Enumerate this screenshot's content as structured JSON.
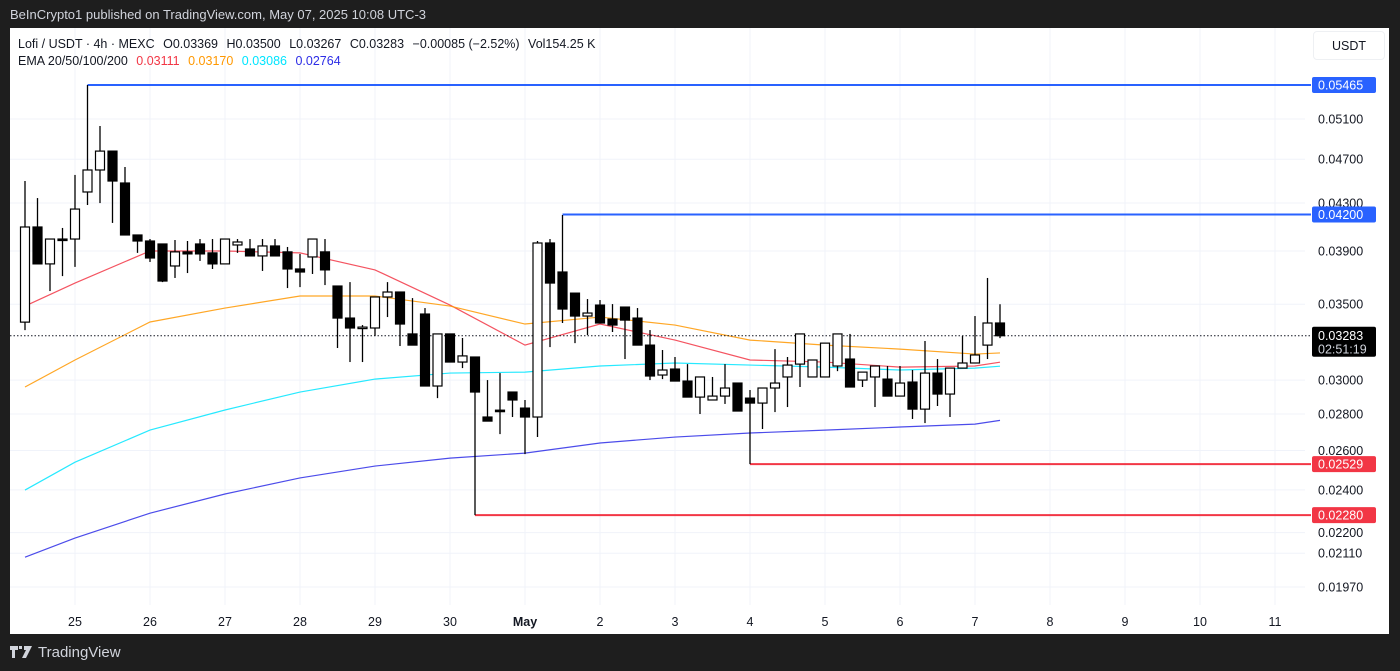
{
  "publish_line": "BeInCrypto1 published on TradingView.com, May 07, 2025 10:08 UTC-3",
  "legend": {
    "symbol": "Lofi / USDT · 4h · MEXC",
    "open": "O0.03369",
    "high": "H0.03500",
    "low": "L0.03267",
    "close": "C0.03283",
    "change": "−0.00085 (−2.52%)",
    "volume": "Vol154.25 K",
    "ema_label": "EMA 20/50/100/200",
    "ema_values": [
      "0.03111",
      "0.03170",
      "0.03086",
      "0.02764"
    ]
  },
  "currency_button": "USDT",
  "footer_brand": "TradingView",
  "colors": {
    "ema20": "#f23645",
    "ema50": "#ff9800",
    "ema100": "#00e5ff",
    "ema200": "#2d2de6",
    "resistance": "#2962ff",
    "support": "#f23645",
    "up": "#ffffff",
    "down": "#000000"
  },
  "chart_data": {
    "type": "candlestick",
    "title": "Lofi / USDT · 4h · MEXC",
    "y_scale": "log",
    "ylim": [
      0.0187,
      0.058
    ],
    "grid": true,
    "y_ticks": [
      "0.05100",
      "0.04700",
      "0.04300",
      "0.03900",
      "0.03500",
      "0.03000",
      "0.02800",
      "0.02600",
      "0.02400",
      "0.02200",
      "0.02110",
      "0.01970"
    ],
    "x_ticks": [
      {
        "label": "25",
        "date": "2025-04-25"
      },
      {
        "label": "26",
        "date": "2025-04-26"
      },
      {
        "label": "27",
        "date": "2025-04-27"
      },
      {
        "label": "28",
        "date": "2025-04-28"
      },
      {
        "label": "29",
        "date": "2025-04-29"
      },
      {
        "label": "30",
        "date": "2025-04-30"
      },
      {
        "label": "May",
        "date": "2025-05-01"
      },
      {
        "label": "2",
        "date": "2025-05-02"
      },
      {
        "label": "3",
        "date": "2025-05-03"
      },
      {
        "label": "4",
        "date": "2025-05-04"
      },
      {
        "label": "5",
        "date": "2025-05-05"
      },
      {
        "label": "6",
        "date": "2025-05-06"
      },
      {
        "label": "7",
        "date": "2025-05-07"
      },
      {
        "label": "8",
        "date": "2025-05-08"
      },
      {
        "label": "9",
        "date": "2025-05-09"
      },
      {
        "label": "10",
        "date": "2025-05-10"
      },
      {
        "label": "11",
        "date": "2025-05-11"
      }
    ],
    "candle_fields": [
      "time",
      "open",
      "high",
      "low",
      "close"
    ],
    "candles": [
      [
        "2025-04-24 08:00",
        0.03375,
        0.04496,
        0.03321,
        0.04095
      ],
      [
        "2025-04-24 12:00",
        0.04095,
        0.04343,
        0.03799,
        0.03799
      ],
      [
        "2025-04-24 16:00",
        0.03799,
        0.03996,
        0.03595,
        0.03996
      ],
      [
        "2025-04-24 20:00",
        0.03996,
        0.04087,
        0.03706,
        0.0399
      ],
      [
        "2025-04-25 00:00",
        0.03996,
        0.04552,
        0.03776,
        0.04247
      ],
      [
        "2025-04-25 04:00",
        0.04397,
        0.05465,
        0.04282,
        0.04598
      ],
      [
        "2025-04-25 08:00",
        0.04598,
        0.05028,
        0.04299,
        0.04778
      ],
      [
        "2025-04-25 12:00",
        0.04778,
        0.04778,
        0.04129,
        0.04496
      ],
      [
        "2025-04-25 16:00",
        0.04478,
        0.04626,
        0.04029,
        0.04029
      ],
      [
        "2025-04-25 20:00",
        0.04029,
        0.04029,
        0.03885,
        0.0398
      ],
      [
        "2025-04-26 00:00",
        0.0398,
        0.03996,
        0.03814,
        0.03845
      ],
      [
        "2025-04-26 04:00",
        0.03956,
        0.03956,
        0.03661,
        0.03669
      ],
      [
        "2025-04-26 08:00",
        0.03783,
        0.03988,
        0.03692,
        0.03893
      ],
      [
        "2025-04-26 12:00",
        0.03893,
        0.0398,
        0.03729,
        0.03877
      ],
      [
        "2025-04-26 16:00",
        0.03956,
        0.03996,
        0.03822,
        0.03877
      ],
      [
        "2025-04-26 20:00",
        0.03885,
        0.03996,
        0.0376,
        0.03799
      ],
      [
        "2025-04-27 00:00",
        0.03799,
        0.03996,
        0.03799,
        0.03996
      ],
      [
        "2025-04-27 04:00",
        0.03948,
        0.03996,
        0.03885,
        0.03972
      ],
      [
        "2025-04-27 08:00",
        0.03916,
        0.03996,
        0.03861,
        0.03861
      ],
      [
        "2025-04-27 12:00",
        0.03861,
        0.03996,
        0.03745,
        0.0394
      ],
      [
        "2025-04-27 16:00",
        0.0394,
        0.03996,
        0.03861,
        0.03861
      ],
      [
        "2025-04-27 20:00",
        0.03893,
        0.03932,
        0.03617,
        0.0376
      ],
      [
        "2025-04-28 00:00",
        0.0376,
        0.03877,
        0.03624,
        0.03737
      ],
      [
        "2025-04-28 04:00",
        0.03853,
        0.03996,
        0.03722,
        0.03996
      ],
      [
        "2025-04-28 08:00",
        0.03893,
        0.03996,
        0.03639,
        0.03753
      ],
      [
        "2025-04-28 12:00",
        0.03632,
        0.03632,
        0.03202,
        0.03403
      ],
      [
        "2025-04-28 16:00",
        0.03403,
        0.03661,
        0.03112,
        0.03335
      ],
      [
        "2025-04-28 20:00",
        0.03335,
        0.03355,
        0.03112,
        0.03341
      ],
      [
        "2025-04-29 00:00",
        0.03335,
        0.03552,
        0.03281,
        0.03552
      ],
      [
        "2025-04-29 04:00",
        0.03552,
        0.03661,
        0.0341,
        0.03588
      ],
      [
        "2025-04-29 08:00",
        0.03588,
        0.03588,
        0.03215,
        0.03362
      ],
      [
        "2025-04-29 12:00",
        0.03295,
        0.03544,
        0.03221,
        0.03221
      ],
      [
        "2025-04-29 16:00",
        0.03431,
        0.03473,
        0.02964,
        0.02964
      ],
      [
        "2025-04-29 20:00",
        0.02964,
        0.03295,
        0.02892,
        0.03295
      ],
      [
        "2025-04-30 00:00",
        0.03295,
        0.03295,
        0.03112,
        0.03112
      ],
      [
        "2025-04-30 04:00",
        0.03112,
        0.03268,
        0.03074,
        0.03151
      ],
      [
        "2025-04-30 08:00",
        0.03144,
        0.03144,
        0.0228,
        0.02928
      ],
      [
        "2025-04-30 12:00",
        0.02783,
        0.03,
        0.0276,
        0.0276
      ],
      [
        "2025-04-30 16:00",
        0.02822,
        0.03043,
        0.02688,
        0.02818
      ],
      [
        "2025-04-30 20:00",
        0.02928,
        0.02928,
        0.02783,
        0.02881
      ],
      [
        "2025-05-01 00:00",
        0.02834,
        0.02881,
        0.02581,
        0.02783
      ],
      [
        "2025-05-01 04:00",
        0.02783,
        0.0398,
        0.02672,
        0.03964
      ],
      [
        "2025-05-01 08:00",
        0.03964,
        0.03996,
        0.03208,
        0.03654
      ],
      [
        "2025-05-01 12:00",
        0.03737,
        0.04196,
        0.03369,
        0.03466
      ],
      [
        "2025-05-01 16:00",
        0.0358,
        0.0358,
        0.03234,
        0.03417
      ],
      [
        "2025-05-01 20:00",
        0.03417,
        0.03537,
        0.03288,
        0.03438
      ],
      [
        "2025-05-02 00:00",
        0.03494,
        0.0353,
        0.03369,
        0.03369
      ],
      [
        "2025-05-02 04:00",
        0.03396,
        0.03501,
        0.03308,
        0.03355
      ],
      [
        "2025-05-02 08:00",
        0.0348,
        0.0348,
        0.03131,
        0.03389
      ],
      [
        "2025-05-02 12:00",
        0.03403,
        0.03473,
        0.03221,
        0.03221
      ],
      [
        "2025-05-02 16:00",
        0.03221,
        0.03321,
        0.03,
        0.03025
      ],
      [
        "2025-05-02 20:00",
        0.03031,
        0.03189,
        0.03006,
        0.03062
      ],
      [
        "2025-05-03 00:00",
        0.03068,
        0.03144,
        0.02994,
        0.02994
      ],
      [
        "2025-05-03 04:00",
        0.02994,
        0.03099,
        0.02898,
        0.02898
      ],
      [
        "2025-05-03 08:00",
        0.02898,
        0.03019,
        0.028,
        0.03019
      ],
      [
        "2025-05-03 12:00",
        0.02881,
        0.03019,
        0.02881,
        0.02904
      ],
      [
        "2025-05-03 16:00",
        0.02904,
        0.03099,
        0.02858,
        0.02952
      ],
      [
        "2025-05-03 20:00",
        0.02982,
        0.02982,
        0.02817,
        0.02817
      ],
      [
        "2025-05-04 00:00",
        0.02892,
        0.0294,
        0.02529,
        0.02863
      ],
      [
        "2025-05-04 04:00",
        0.02863,
        0.02952,
        0.02716,
        0.02952
      ],
      [
        "2025-05-04 08:00",
        0.02952,
        0.03195,
        0.02811,
        0.02982
      ],
      [
        "2025-05-04 12:00",
        0.03019,
        0.03144,
        0.0284,
        0.03093
      ],
      [
        "2025-05-04 16:00",
        0.03099,
        0.03295,
        0.02958,
        0.03295
      ],
      [
        "2025-05-04 20:00",
        0.03019,
        0.03125,
        0.03019,
        0.03125
      ],
      [
        "2025-05-05 00:00",
        0.03019,
        0.03234,
        0.03019,
        0.03234
      ],
      [
        "2025-05-05 04:00",
        0.03087,
        0.03295,
        0.03055,
        0.03295
      ],
      [
        "2025-05-05 08:00",
        0.03131,
        0.03295,
        0.02958,
        0.02958
      ],
      [
        "2025-05-05 12:00",
        0.03,
        0.03049,
        0.02958,
        0.03049
      ],
      [
        "2025-05-05 16:00",
        0.03019,
        0.03087,
        0.0284,
        0.03087
      ],
      [
        "2025-05-05 20:00",
        0.03006,
        0.03087,
        0.02904,
        0.02904
      ],
      [
        "2025-05-06 00:00",
        0.02904,
        0.03087,
        0.02904,
        0.02982
      ],
      [
        "2025-05-06 04:00",
        0.02988,
        0.03062,
        0.02772,
        0.02828
      ],
      [
        "2025-05-06 08:00",
        0.02828,
        0.03248,
        0.02749,
        0.03043
      ],
      [
        "2025-05-06 12:00",
        0.03043,
        0.03131,
        0.02846,
        0.02916
      ],
      [
        "2025-05-06 16:00",
        0.02916,
        0.03074,
        0.02783,
        0.03074
      ],
      [
        "2025-05-06 20:00",
        0.03074,
        0.03281,
        0.03074,
        0.03106
      ],
      [
        "2025-05-07 00:00",
        0.03106,
        0.03417,
        0.03106,
        0.03157
      ],
      [
        "2025-05-07 04:00",
        0.03221,
        0.03692,
        0.03131,
        0.03369
      ],
      [
        "2025-05-07 08:00",
        0.03369,
        0.035,
        0.03267,
        0.03283
      ]
    ],
    "ema_times": [
      "2025-04-24 08:00",
      "2025-04-25 00:00",
      "2025-04-26 00:00",
      "2025-04-27 00:00",
      "2025-04-28 00:00",
      "2025-04-29 00:00",
      "2025-04-30 00:00",
      "2025-05-01 00:00",
      "2025-05-02 00:00",
      "2025-05-03 00:00",
      "2025-05-04 00:00",
      "2025-05-05 00:00",
      "2025-05-06 00:00",
      "2025-05-07 00:00",
      "2025-05-07 08:00"
    ],
    "series": [
      {
        "name": "EMA 20",
        "color_key": "ema20",
        "values": [
          0.03487,
          0.03654,
          0.039,
          0.039,
          0.03885,
          0.03753,
          0.03494,
          0.03221,
          0.03362,
          0.03254,
          0.03125,
          0.03112,
          0.0308,
          0.03087,
          0.03111
        ]
      },
      {
        "name": "EMA 50",
        "color_key": "ema50",
        "values": [
          0.02958,
          0.03125,
          0.03376,
          0.03473,
          0.03559,
          0.03559,
          0.03487,
          0.03362,
          0.0341,
          0.03355,
          0.03254,
          0.03221,
          0.03195,
          0.03163,
          0.0317
        ]
      },
      {
        "name": "EMA 100",
        "color_key": "ema100",
        "values": [
          0.02399,
          0.02539,
          0.0271,
          0.02823,
          0.02928,
          0.03006,
          0.03043,
          0.03049,
          0.03087,
          0.03106,
          0.03093,
          0.0308,
          0.03062,
          0.03074,
          0.03086
        ]
      },
      {
        "name": "EMA 200",
        "color_key": "ema200",
        "values": [
          0.02093,
          0.02176,
          0.02289,
          0.0238,
          0.02459,
          0.02519,
          0.0256,
          0.02586,
          0.0264,
          0.02672,
          0.02694,
          0.0271,
          0.02727,
          0.02743,
          0.02764
        ]
      }
    ],
    "levels": [
      {
        "label": "0.05465",
        "price": 0.05465,
        "from": "2025-04-25 04:00",
        "kind": "resistance"
      },
      {
        "label": "0.04200",
        "price": 0.042,
        "from": "2025-05-01 12:00",
        "kind": "resistance"
      },
      {
        "label": "0.02529",
        "price": 0.02529,
        "from": "2025-05-04 00:00",
        "kind": "support"
      },
      {
        "label": "0.02280",
        "price": 0.0228,
        "from": "2025-04-30 08:00",
        "kind": "support"
      }
    ],
    "last_price": {
      "label": "0.03283",
      "price": 0.03283,
      "countdown": "02:51:19"
    }
  }
}
